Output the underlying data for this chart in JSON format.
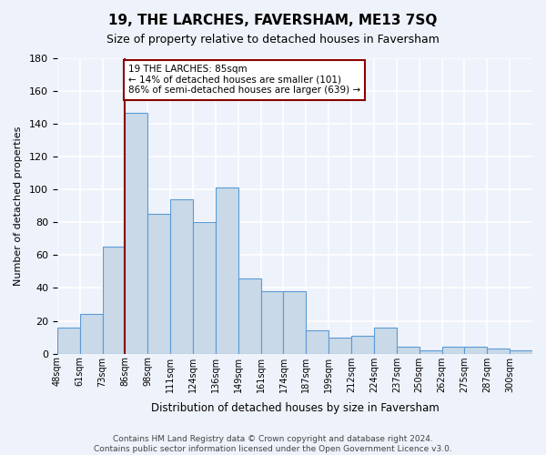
{
  "title": "19, THE LARCHES, FAVERSHAM, ME13 7SQ",
  "subtitle": "Size of property relative to detached houses in Faversham",
  "xlabel": "Distribution of detached houses by size in Faversham",
  "ylabel": "Number of detached properties",
  "bin_labels": [
    "48sqm",
    "61sqm",
    "73sqm",
    "86sqm",
    "98sqm",
    "111sqm",
    "124sqm",
    "136sqm",
    "149sqm",
    "161sqm",
    "174sqm",
    "187sqm",
    "199sqm",
    "212sqm",
    "224sqm",
    "237sqm",
    "250sqm",
    "262sqm",
    "275sqm",
    "287sqm",
    "300sqm"
  ],
  "bar_heights": [
    16,
    24,
    65,
    147,
    85,
    94,
    80,
    101,
    46,
    38,
    38,
    14,
    10,
    11,
    16,
    4,
    2,
    4,
    4,
    3,
    2
  ],
  "bar_color": "#c9d9e8",
  "bar_edge_color": "#5b9bd5",
  "background_color": "#eef2fb",
  "grid_color": "#ffffff",
  "annotation_text": "19 THE LARCHES: 85sqm\n← 14% of detached houses are smaller (101)\n86% of semi-detached houses are larger (639) →",
  "footnote": "Contains HM Land Registry data © Crown copyright and database right 2024.\nContains public sector information licensed under the Open Government Licence v3.0.",
  "ylim": [
    0,
    180
  ],
  "yticks": [
    0,
    20,
    40,
    60,
    80,
    100,
    120,
    140,
    160,
    180
  ],
  "property_line_x": 3.0
}
